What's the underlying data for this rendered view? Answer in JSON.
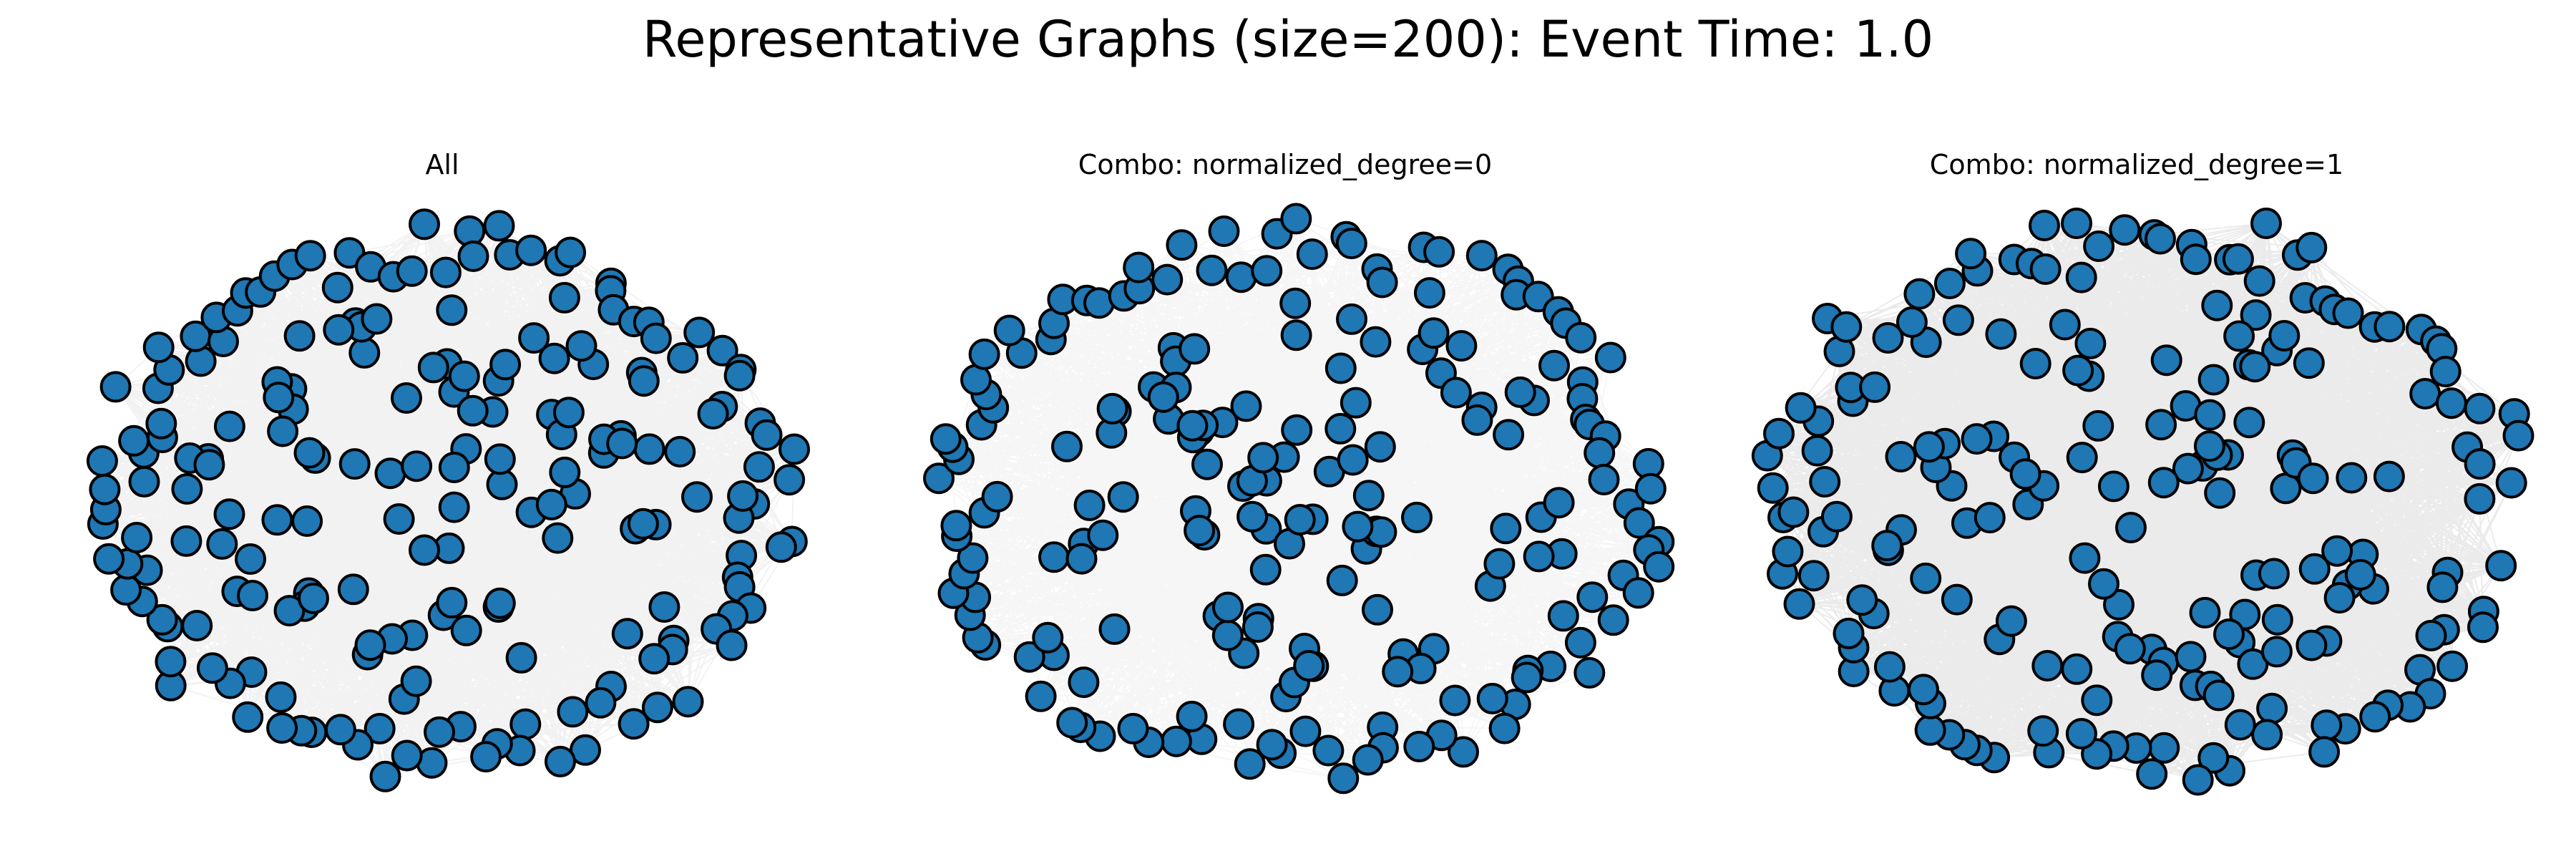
{
  "title": "Representative Graphs (size=200): Event Time: 1.0",
  "panels": [
    {
      "title": "All",
      "node_count": 200,
      "edge_density": "dense"
    },
    {
      "title": "Combo: normalized_degree=0",
      "node_count": 200,
      "edge_density": "medium"
    },
    {
      "title": "Combo: normalized_degree=1",
      "node_count": 200,
      "edge_density": "very-dense"
    }
  ],
  "colors": {
    "node_fill": "#1f77b4",
    "node_stroke": "#000000",
    "edge": "#000000",
    "background": "#ffffff"
  }
}
